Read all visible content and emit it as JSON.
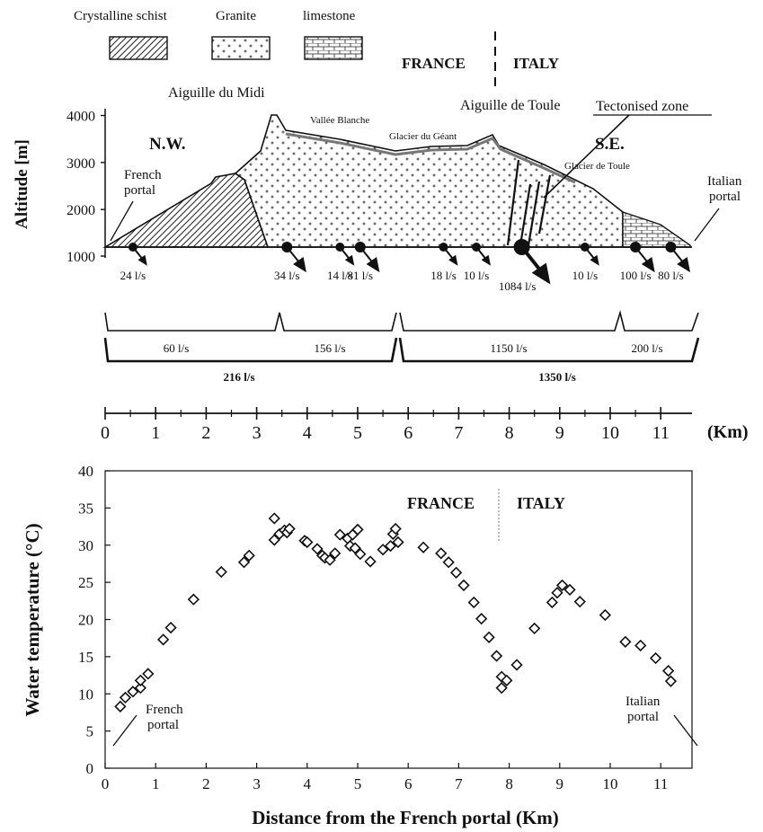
{
  "legend": {
    "schist": "Crystalline schist",
    "granite": "Granite",
    "limestone": "limestone"
  },
  "border": {
    "france": "FRANCE",
    "italy": "ITALY"
  },
  "profile": {
    "labels": {
      "aiguille_midi": "Aiguille du Midi",
      "aiguille_toule": "Aiguille de Toule",
      "tectonised": "Tectonised zone",
      "nw": "N.W.",
      "se": "S.E.",
      "vallee_blanche": "Vallée Blanche",
      "glacier_geant": "Glacier du Géant",
      "glacier_toule": "Glacier de Toule",
      "french_portal": [
        "French",
        "portal"
      ],
      "italian_portal": [
        "Italian",
        "portal"
      ]
    },
    "ylabel": "Altitude [m]",
    "yticks": [
      1000,
      2000,
      3000,
      4000
    ],
    "inflows": [
      {
        "km": 0.55,
        "label": "24 l/s",
        "size": 1
      },
      {
        "km": 3.6,
        "label": "34 l/s",
        "size": 2
      },
      {
        "km": 4.65,
        "label": "14 l/s",
        "size": 1
      },
      {
        "km": 5.05,
        "label": "81 l/s",
        "size": 2
      },
      {
        "km": 6.7,
        "label": "18 l/s",
        "size": 1
      },
      {
        "km": 7.35,
        "label": "10 l/s",
        "size": 1
      },
      {
        "km": 8.25,
        "label": "1084 l/s",
        "size": 3
      },
      {
        "km": 9.5,
        "label": "10 l/s",
        "size": 1
      },
      {
        "km": 10.5,
        "label": "100 l/s",
        "size": 2
      },
      {
        "km": 11.2,
        "label": "80 l/s",
        "size": 2
      }
    ],
    "segments": [
      "60 l/s",
      "156 l/s",
      "1150 l/s",
      "200 l/s"
    ],
    "totals": [
      "216 l/s",
      "1350 l/s"
    ]
  },
  "distance_axis": {
    "label": "(Km)",
    "ticks": [
      0,
      1,
      2,
      3,
      4,
      5,
      6,
      7,
      8,
      9,
      10,
      11
    ]
  },
  "chart_data": {
    "type": "scatter",
    "title": "",
    "xlabel": "Distance from the French portal (Km)",
    "ylabel": "Water temperature (°C)",
    "xlim": [
      0,
      11.7
    ],
    "ylim": [
      0,
      40
    ],
    "xticks": [
      0,
      1,
      2,
      3,
      4,
      5,
      6,
      7,
      8,
      9,
      10,
      11
    ],
    "yticks": [
      0,
      5,
      10,
      15,
      20,
      25,
      30,
      35,
      40
    ],
    "grid": false,
    "annotations": {
      "france": "FRANCE",
      "italy": "ITALY",
      "french_portal": [
        "French",
        "portal"
      ],
      "italian_portal": [
        "Italian",
        "portal"
      ]
    },
    "points": [
      [
        0.3,
        8.3
      ],
      [
        0.4,
        9.5
      ],
      [
        0.55,
        10.3
      ],
      [
        0.7,
        10.8
      ],
      [
        0.7,
        11.8
      ],
      [
        0.85,
        12.7
      ],
      [
        1.15,
        17.3
      ],
      [
        1.3,
        18.9
      ],
      [
        1.75,
        22.7
      ],
      [
        2.3,
        26.4
      ],
      [
        2.75,
        27.7
      ],
      [
        2.85,
        28.6
      ],
      [
        3.35,
        33.6
      ],
      [
        3.35,
        30.7
      ],
      [
        3.45,
        31.5
      ],
      [
        3.55,
        32.0
      ],
      [
        3.6,
        31.7
      ],
      [
        3.65,
        32.2
      ],
      [
        3.95,
        30.6
      ],
      [
        4.0,
        30.4
      ],
      [
        4.2,
        29.5
      ],
      [
        4.3,
        28.6
      ],
      [
        4.35,
        28.3
      ],
      [
        4.45,
        28.0
      ],
      [
        4.55,
        28.9
      ],
      [
        4.65,
        31.4
      ],
      [
        4.8,
        30.9
      ],
      [
        4.85,
        29.9
      ],
      [
        4.9,
        31.4
      ],
      [
        4.95,
        29.6
      ],
      [
        5.0,
        32.1
      ],
      [
        5.05,
        28.8
      ],
      [
        5.25,
        27.8
      ],
      [
        5.5,
        29.4
      ],
      [
        5.65,
        29.9
      ],
      [
        5.7,
        31.5
      ],
      [
        5.75,
        32.2
      ],
      [
        5.8,
        30.4
      ],
      [
        6.3,
        29.7
      ],
      [
        6.65,
        28.9
      ],
      [
        6.8,
        27.7
      ],
      [
        6.95,
        26.3
      ],
      [
        7.1,
        24.6
      ],
      [
        7.3,
        22.3
      ],
      [
        7.45,
        20.1
      ],
      [
        7.6,
        17.6
      ],
      [
        7.75,
        15.1
      ],
      [
        7.85,
        12.3
      ],
      [
        7.85,
        10.8
      ],
      [
        7.95,
        11.8
      ],
      [
        8.15,
        13.9
      ],
      [
        8.5,
        18.8
      ],
      [
        8.85,
        22.3
      ],
      [
        8.95,
        23.6
      ],
      [
        9.05,
        24.6
      ],
      [
        9.2,
        24.0
      ],
      [
        9.4,
        22.4
      ],
      [
        9.9,
        20.6
      ],
      [
        10.3,
        17.0
      ],
      [
        10.6,
        16.5
      ],
      [
        10.9,
        14.8
      ],
      [
        11.15,
        13.1
      ],
      [
        11.2,
        11.7
      ]
    ]
  }
}
